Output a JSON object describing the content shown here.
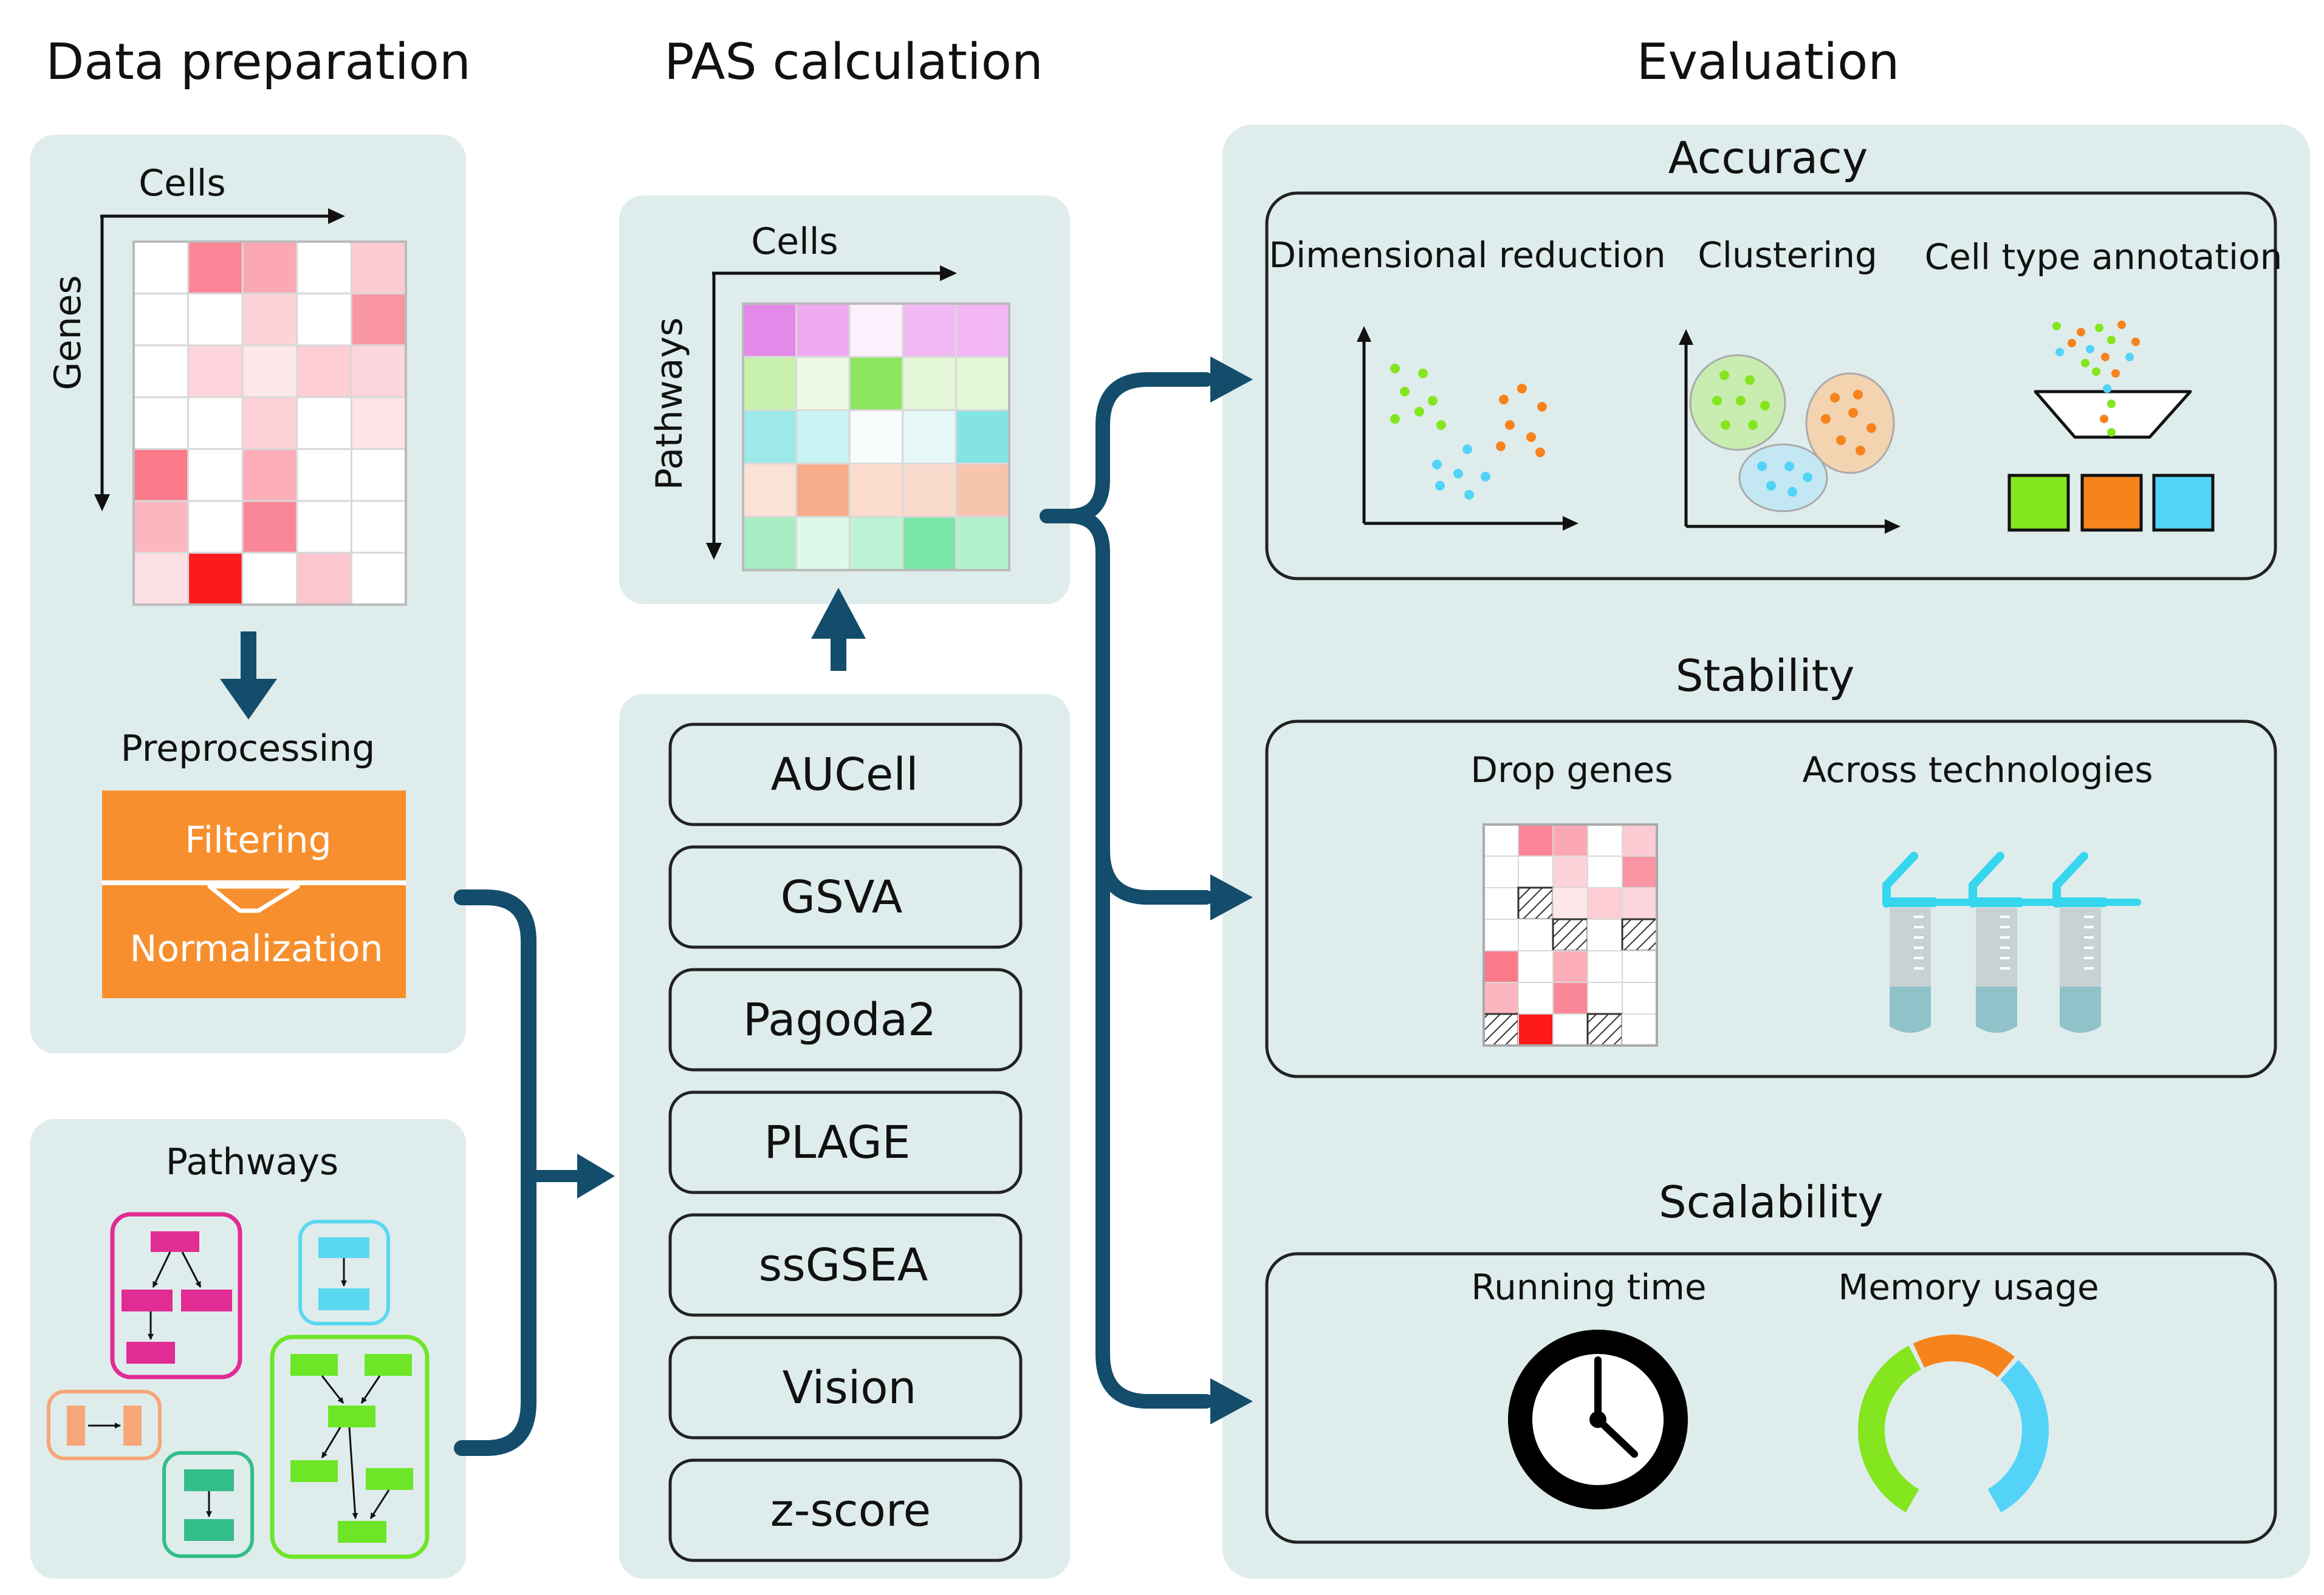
{
  "columns": {
    "data_preparation": "Data preparation",
    "pas_calculation": "PAS calculation",
    "evaluation": "Evaluation"
  },
  "expression_matrix": {
    "x_label": "Cells",
    "y_label": "Genes",
    "cells": [
      [
        "#ffffff",
        "#fb8596",
        "#fba8b4",
        "#ffffff",
        "#fccbd3"
      ],
      [
        "#ffffff",
        "#ffffff",
        "#fdd3da",
        "#ffffff",
        "#fa95a3"
      ],
      [
        "#ffffff",
        "#fdd4db",
        "#fde7eb",
        "#fdcdd4",
        "#fdd5dc"
      ],
      [
        "#ffffff",
        "#ffffff",
        "#fdd0d8",
        "#ffffff",
        "#fde3e8"
      ],
      [
        "#fa7a8a",
        "#ffffff",
        "#fcadb8",
        "#ffffff",
        "#ffffff"
      ],
      [
        "#fcb6c0",
        "#ffffff",
        "#fa8797",
        "#ffffff",
        "#ffffff"
      ],
      [
        "#fde0e5",
        "#fe1a1a",
        "#ffffff",
        "#fcc6cf",
        "#ffffff"
      ]
    ]
  },
  "preprocessing": {
    "title": "Preprocessing",
    "step1": "Filtering",
    "step2": "Normalization",
    "color": "#f78f2e"
  },
  "pathways_panel": {
    "title": "Pathways",
    "colors": [
      "#e02c93",
      "#5ad8f0",
      "#f6a679",
      "#33bd8a",
      "#6ee628"
    ]
  },
  "pas_matrix": {
    "x_label": "Cells",
    "y_label": "Pathways",
    "cells": [
      [
        "#e489ea",
        "#eeabf1",
        "#fdf1fd",
        "#f3b9f4",
        "#f2b7f4"
      ],
      [
        "#c7f1ad",
        "#ecf9e6",
        "#8ee660",
        "#e3f7d8",
        "#e4f8d9"
      ],
      [
        "#9ce9e8",
        "#c9f4f4",
        "#f8fcfc",
        "#e6f8f8",
        "#84e4e2"
      ],
      [
        "#fbe1d6",
        "#f7ac8a",
        "#fbdccd",
        "#fbdace",
        "#f7c4ae"
      ],
      [
        "#a8ecc4",
        "#def9e9",
        "#bdf2d4",
        "#7ae7a7",
        "#b4f1cd"
      ]
    ]
  },
  "methods": [
    "AUCell",
    "GSVA",
    "Pagoda2",
    "PLAGE",
    "ssGSEA",
    "Vision",
    "z-score"
  ],
  "evaluation": {
    "accuracy": {
      "title": "Accuracy",
      "items": [
        "Dimensional reduction",
        "Clustering",
        "Cell type annotation"
      ],
      "colors": [
        "#84e61f",
        "#f7831c",
        "#52d3f7"
      ]
    },
    "stability": {
      "title": "Stability",
      "items": [
        "Drop genes",
        "Across technologies"
      ],
      "tube_color": "#35d6ee"
    },
    "scalability": {
      "title": "Scalability",
      "items": [
        "Running time",
        "Memory usage"
      ],
      "gauge_colors": [
        "#84e61f",
        "#f7831c",
        "#52d3f7"
      ]
    }
  },
  "theme": {
    "panel_bg": "#dfecec",
    "arrow": "#134d6b",
    "box_stroke": "#222222"
  }
}
